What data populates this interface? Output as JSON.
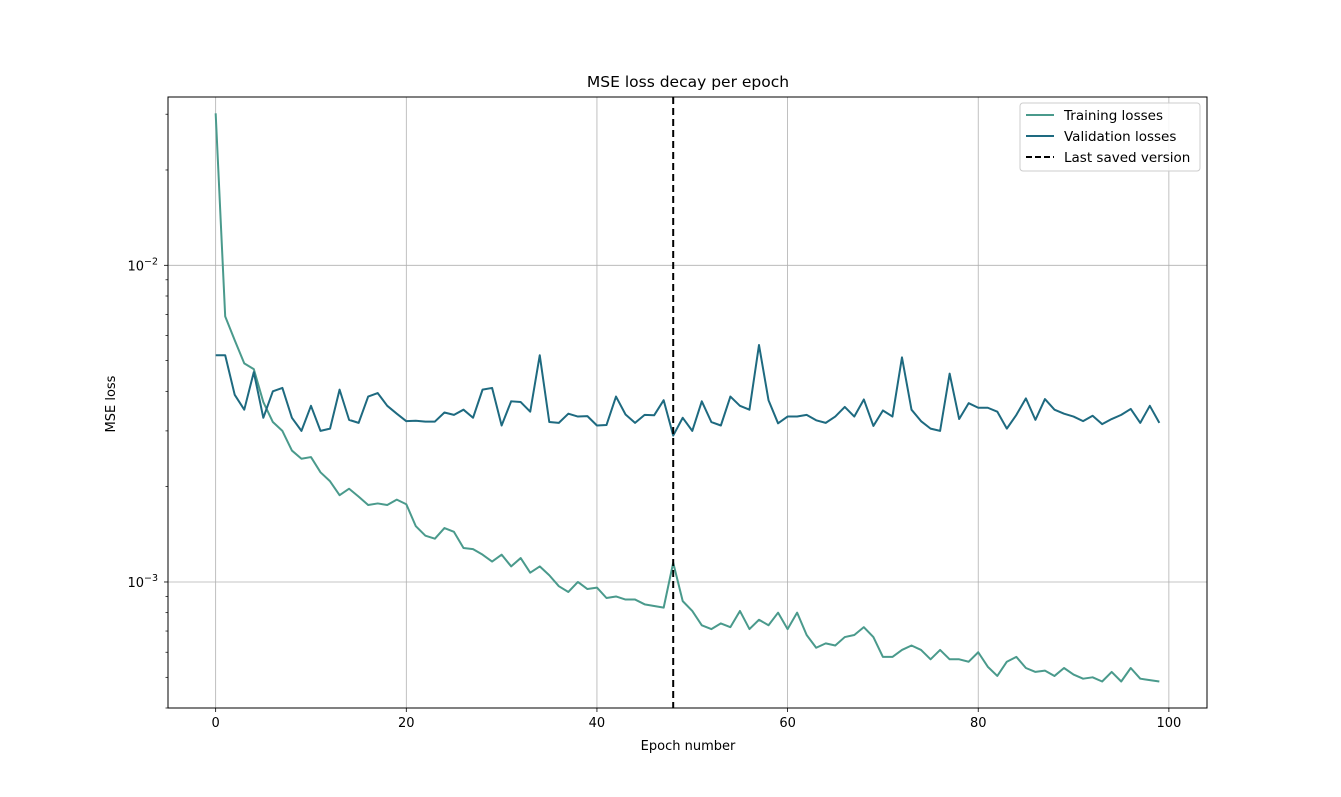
{
  "chart_data": {
    "type": "line",
    "title": "MSE loss decay per epoch",
    "xlabel": "Epoch number",
    "ylabel": "MSE loss",
    "xlim": [
      -5,
      104
    ],
    "ylim": [
      0.0004,
      0.034
    ],
    "yscale": "log",
    "grid": true,
    "legend_position": "top-right",
    "x_ticks": [
      0,
      20,
      40,
      60,
      80,
      100
    ],
    "y_ticks": [
      {
        "value": 0.001,
        "base": "10",
        "exponent": "−3"
      },
      {
        "value": 0.01,
        "base": "10",
        "exponent": "−2"
      }
    ],
    "x": [
      0,
      1,
      2,
      3,
      4,
      5,
      6,
      7,
      8,
      9,
      10,
      11,
      12,
      13,
      14,
      15,
      16,
      17,
      18,
      19,
      20,
      21,
      22,
      23,
      24,
      25,
      26,
      27,
      28,
      29,
      30,
      31,
      32,
      33,
      34,
      35,
      36,
      37,
      38,
      39,
      40,
      41,
      42,
      43,
      44,
      45,
      46,
      47,
      48,
      49,
      50,
      51,
      52,
      53,
      54,
      55,
      56,
      57,
      58,
      59,
      60,
      61,
      62,
      63,
      64,
      65,
      66,
      67,
      68,
      69,
      70,
      71,
      72,
      73,
      74,
      75,
      76,
      77,
      78,
      79,
      80,
      81,
      82,
      83,
      84,
      85,
      86,
      87,
      88,
      89,
      90,
      91,
      92,
      93,
      94,
      95,
      96,
      97,
      98,
      99
    ],
    "series": [
      {
        "name": "Training losses",
        "color": "#4a9a8c",
        "style": "solid",
        "values": [
          0.0302,
          0.0069,
          0.0058,
          0.0049,
          0.0047,
          0.0037,
          0.0032,
          0.003,
          0.0026,
          0.00245,
          0.00248,
          0.00222,
          0.00208,
          0.00188,
          0.00197,
          0.00186,
          0.00175,
          0.00177,
          0.00175,
          0.00182,
          0.00176,
          0.0015,
          0.0014,
          0.00137,
          0.00148,
          0.00144,
          0.00128,
          0.00127,
          0.00122,
          0.00116,
          0.00122,
          0.00112,
          0.00119,
          0.00107,
          0.00112,
          0.00105,
          0.00097,
          0.00093,
          0.001,
          0.00095,
          0.00096,
          0.00089,
          0.0009,
          0.00088,
          0.00088,
          0.00085,
          0.00084,
          0.00083,
          0.00115,
          0.00087,
          0.00081,
          0.00073,
          0.00071,
          0.00074,
          0.00072,
          0.00081,
          0.00071,
          0.00076,
          0.00073,
          0.0008,
          0.00071,
          0.0008,
          0.00068,
          0.00062,
          0.00064,
          0.00063,
          0.00067,
          0.00068,
          0.00072,
          0.00067,
          0.00058,
          0.00058,
          0.00061,
          0.00063,
          0.00061,
          0.00057,
          0.00061,
          0.00057,
          0.00057,
          0.00056,
          0.0006,
          0.00054,
          0.000505,
          0.00056,
          0.00058,
          0.000535,
          0.00052,
          0.000525,
          0.000505,
          0.000535,
          0.00051,
          0.000495,
          0.0005,
          0.000485,
          0.00052,
          0.000485,
          0.000535,
          0.000495,
          0.00049,
          0.000485
        ]
      },
      {
        "name": "Validation losses",
        "color": "#1e6a80",
        "style": "solid",
        "values": [
          0.0052,
          0.0052,
          0.0039,
          0.0035,
          0.0046,
          0.0033,
          0.004,
          0.0041,
          0.0033,
          0.003,
          0.0036,
          0.003,
          0.00305,
          0.00405,
          0.00325,
          0.00318,
          0.00385,
          0.00395,
          0.0036,
          0.0034,
          0.00322,
          0.00323,
          0.00321,
          0.00321,
          0.00343,
          0.00337,
          0.0035,
          0.0033,
          0.00405,
          0.0041,
          0.00312,
          0.00372,
          0.0037,
          0.00345,
          0.0052,
          0.0032,
          0.00318,
          0.0034,
          0.00333,
          0.00334,
          0.00312,
          0.00313,
          0.00385,
          0.00338,
          0.00318,
          0.00337,
          0.00336,
          0.00375,
          0.0029,
          0.0033,
          0.003,
          0.00372,
          0.0032,
          0.00312,
          0.00385,
          0.0036,
          0.0035,
          0.0056,
          0.00375,
          0.00317,
          0.00333,
          0.00333,
          0.00337,
          0.00324,
          0.00318,
          0.00333,
          0.00357,
          0.00333,
          0.00377,
          0.00311,
          0.00348,
          0.00333,
          0.00512,
          0.0035,
          0.00322,
          0.00305,
          0.003,
          0.00455,
          0.00327,
          0.00367,
          0.00355,
          0.00355,
          0.00345,
          0.00305,
          0.00337,
          0.0038,
          0.00325,
          0.00378,
          0.0035,
          0.0034,
          0.00333,
          0.00322,
          0.00335,
          0.00315,
          0.00327,
          0.00337,
          0.00352,
          0.00318,
          0.0036,
          0.00318
        ]
      },
      {
        "name": "Last saved version",
        "color": "#000000",
        "style": "dashed",
        "type": "vline",
        "x": 48
      }
    ]
  }
}
